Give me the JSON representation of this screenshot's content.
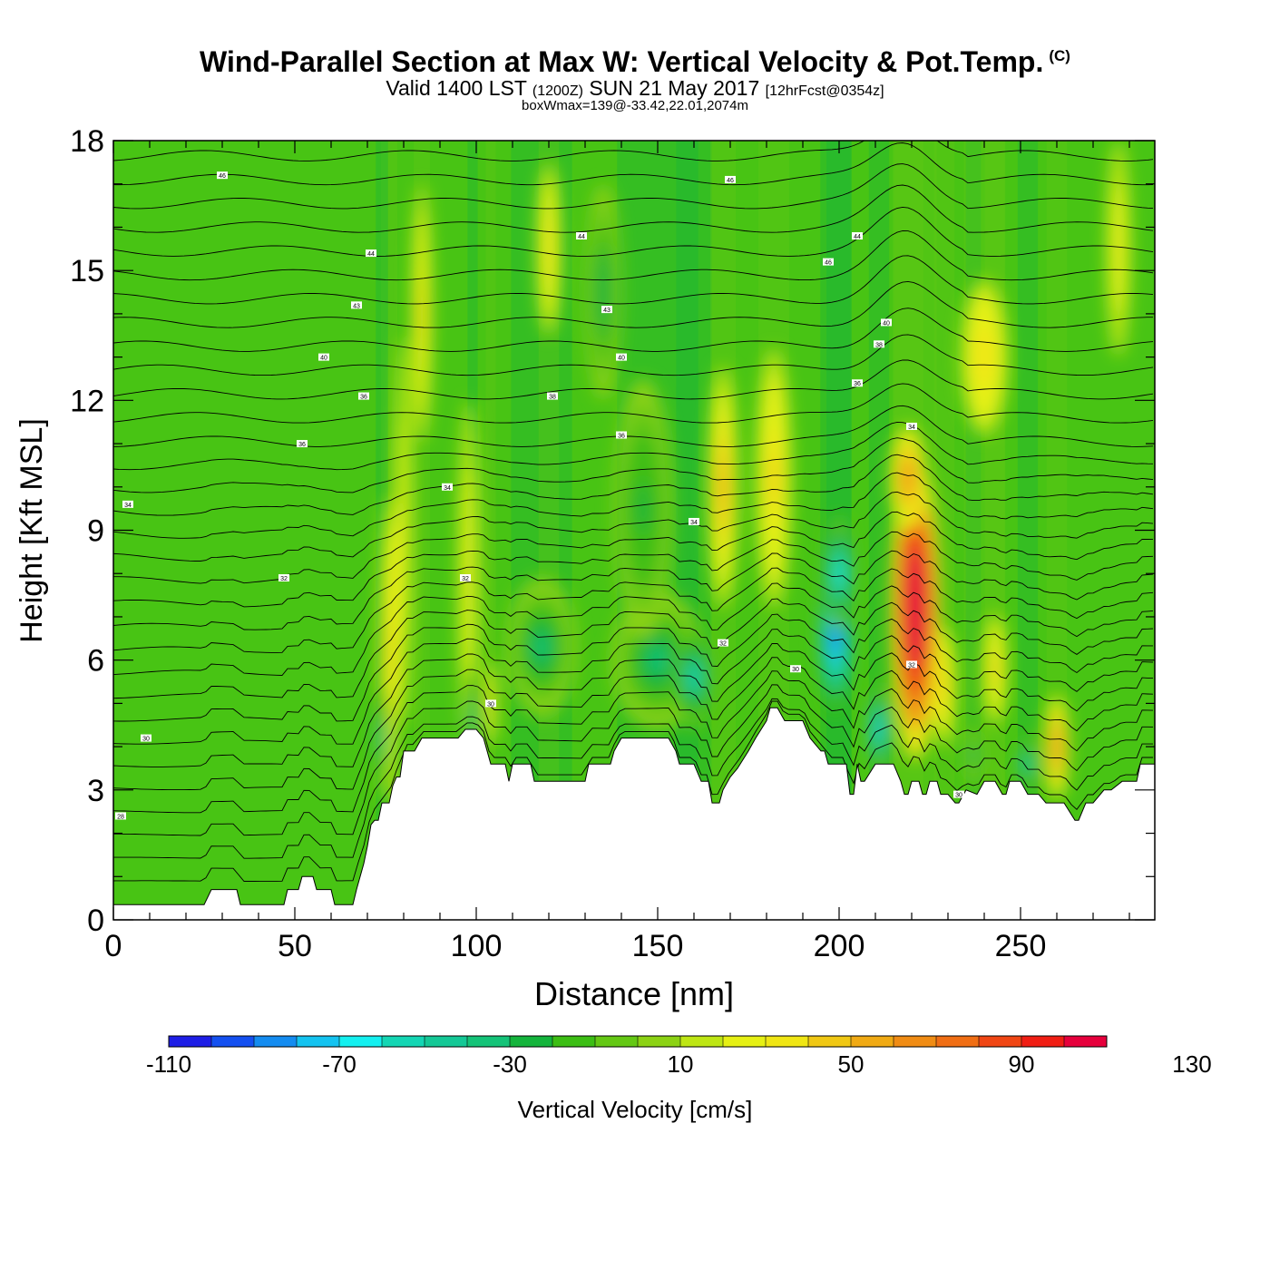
{
  "header": {
    "title": "Wind-Parallel Section at Max W: Vertical Velocity & Pot.Temp.",
    "title_tag": "(C)",
    "valid_prefix": "Valid 1400 LST",
    "valid_zulu": "(1200Z)",
    "valid_date": "SUN 21 May 2017",
    "forecast": "[12hrFcst@0354z]",
    "subtitle": "boxWmax=139@-33.42,22.01,2074m"
  },
  "colors": {
    "background_field": "#48c414",
    "terrain": "#ffffff",
    "contour": "#000000",
    "colorbar": [
      "#1e1ee6",
      "#1450f0",
      "#148cf0",
      "#14c3f0",
      "#14f0f0",
      "#14d6b4",
      "#14c896",
      "#14c378",
      "#14b43c",
      "#3cbe14",
      "#64c814",
      "#8cd214",
      "#bee614",
      "#e6f014",
      "#f0e614",
      "#f0c814",
      "#f0aa14",
      "#f08c14",
      "#f06e14",
      "#f04614",
      "#f01e14",
      "#e6003c"
    ]
  },
  "chart_data": {
    "type": "heatmap",
    "xlabel": "Distance [nm]",
    "ylabel": "Height [Kft MSL]",
    "xlim": [
      0,
      287
    ],
    "ylim": [
      0,
      18
    ],
    "x_ticks": [
      0,
      50,
      100,
      150,
      200,
      250
    ],
    "y_ticks": [
      0,
      3,
      6,
      9,
      12,
      15,
      18
    ],
    "colorbar": {
      "label": "Vertical Velocity [cm/s]",
      "range": [
        -110,
        150
      ],
      "step": 10,
      "tick_labels": [
        "-110",
        "-70",
        "-30",
        "10",
        "50",
        "90",
        "130"
      ]
    },
    "max_w": {
      "value": 139,
      "units": "cm/s",
      "lat": -33.42,
      "lon": 22.01,
      "height_m": 2074
    },
    "terrain": {
      "x": [
        0,
        20,
        25,
        27,
        28,
        34,
        35,
        40,
        45,
        47,
        48,
        51,
        52,
        55,
        56,
        60,
        61,
        66,
        67,
        69,
        70,
        71,
        72,
        73,
        74,
        75,
        76,
        77,
        78,
        79,
        80,
        83,
        85,
        88,
        90,
        92,
        95,
        97,
        100,
        102,
        104,
        105,
        106,
        108,
        109,
        110,
        111,
        115,
        116,
        117,
        120,
        125,
        130,
        131,
        133,
        135,
        137,
        138,
        140,
        150,
        153,
        155,
        156,
        158,
        160,
        162,
        164,
        165,
        166,
        167,
        168,
        170,
        172,
        175,
        177,
        180,
        181,
        183,
        185,
        188,
        190,
        192,
        195,
        196,
        197,
        198,
        200,
        201,
        202,
        203,
        204,
        205,
        206,
        207,
        210,
        212,
        215,
        217,
        218,
        219,
        220,
        222,
        223,
        224,
        225,
        227,
        228,
        230,
        232,
        233,
        235,
        238,
        240,
        242,
        243,
        245,
        246,
        247,
        248,
        250,
        252,
        255,
        257,
        260,
        262,
        265,
        266,
        268,
        270,
        273,
        275,
        278,
        279,
        282,
        283,
        285,
        287
      ],
      "y": [
        0.35,
        0.35,
        0.35,
        0.7,
        0.7,
        0.7,
        0.35,
        0.35,
        0.35,
        0.35,
        0.7,
        0.7,
        1.0,
        1.0,
        0.7,
        0.7,
        0.35,
        0.35,
        0.7,
        1.3,
        1.7,
        2.2,
        2.3,
        2.3,
        2.7,
        2.7,
        2.7,
        3.1,
        3.3,
        3.3,
        3.9,
        3.9,
        4.2,
        4.2,
        4.2,
        4.2,
        4.2,
        4.4,
        4.4,
        4.2,
        3.6,
        3.6,
        3.6,
        3.6,
        3.2,
        3.6,
        3.6,
        3.6,
        3.2,
        3.2,
        3.2,
        3.2,
        3.2,
        3.6,
        3.6,
        3.6,
        3.6,
        3.9,
        4.2,
        4.2,
        4.2,
        3.9,
        3.6,
        3.6,
        3.6,
        3.2,
        3.2,
        2.7,
        2.7,
        2.7,
        3.0,
        3.3,
        3.5,
        3.9,
        4.2,
        4.6,
        4.9,
        4.9,
        4.6,
        4.6,
        4.6,
        4.2,
        3.9,
        3.9,
        3.6,
        3.6,
        3.6,
        3.6,
        3.6,
        2.9,
        2.9,
        3.6,
        3.2,
        3.2,
        3.6,
        3.6,
        3.6,
        3.2,
        2.9,
        2.9,
        3.2,
        3.2,
        2.9,
        2.9,
        3.2,
        3.2,
        2.9,
        2.9,
        2.7,
        2.7,
        3.0,
        2.9,
        3.2,
        3.2,
        3.2,
        2.9,
        2.9,
        3.2,
        3.2,
        3.2,
        2.9,
        2.9,
        2.7,
        2.7,
        2.7,
        2.3,
        2.3,
        2.7,
        2.7,
        3.0,
        3.0,
        3.2,
        3.2,
        3.2,
        3.6,
        3.6,
        3.6
      ]
    },
    "velocity_features": [
      {
        "x": 76,
        "y": 6.2,
        "rx": 1.6,
        "ry": 3.6,
        "w": 45
      },
      {
        "x": 80,
        "y": 9.0,
        "rx": 1.4,
        "ry": 4.5,
        "w": 30
      },
      {
        "x": 85,
        "y": 14.0,
        "rx": 1.6,
        "ry": 3.0,
        "w": 40
      },
      {
        "x": 74,
        "y": 4.2,
        "rx": 1.2,
        "ry": 1.2,
        "w": -45
      },
      {
        "x": 98,
        "y": 8.0,
        "rx": 1.8,
        "ry": 4.0,
        "w": 30
      },
      {
        "x": 99,
        "y": 4.6,
        "rx": 1.0,
        "ry": 1.2,
        "w": -50
      },
      {
        "x": 104,
        "y": 5.0,
        "rx": 1.0,
        "ry": 1.0,
        "w": 45
      },
      {
        "x": 118,
        "y": 6.3,
        "rx": 6.0,
        "ry": 1.6,
        "w": -35
      },
      {
        "x": 120,
        "y": 15.5,
        "rx": 2.0,
        "ry": 2.0,
        "w": 35
      },
      {
        "x": 150,
        "y": 6.0,
        "rx": 8.0,
        "ry": 1.6,
        "w": -40
      },
      {
        "x": 160,
        "y": 5.6,
        "rx": 3.5,
        "ry": 1.2,
        "w": -55
      },
      {
        "x": 168,
        "y": 10.0,
        "rx": 2.5,
        "ry": 2.8,
        "w": 50
      },
      {
        "x": 146,
        "y": 9.5,
        "rx": 5.0,
        "ry": 3.0,
        "w": -25
      },
      {
        "x": 182,
        "y": 10.2,
        "rx": 3.0,
        "ry": 3.0,
        "w": 40
      },
      {
        "x": 199,
        "y": 6.6,
        "rx": 3.0,
        "ry": 1.8,
        "w": -95
      },
      {
        "x": 200,
        "y": 8.0,
        "rx": 2.5,
        "ry": 1.3,
        "w": -70
      },
      {
        "x": 211,
        "y": 4.4,
        "rx": 2.0,
        "ry": 1.0,
        "w": -75
      },
      {
        "x": 221,
        "y": 7.2,
        "rx": 4.2,
        "ry": 3.5,
        "w": 139
      },
      {
        "x": 219,
        "y": 10.2,
        "rx": 3.0,
        "ry": 1.2,
        "w": 60
      },
      {
        "x": 229,
        "y": 5.4,
        "rx": 2.0,
        "ry": 1.4,
        "w": 45
      },
      {
        "x": 243,
        "y": 5.8,
        "rx": 2.0,
        "ry": 1.3,
        "w": 40
      },
      {
        "x": 260,
        "y": 4.0,
        "rx": 2.0,
        "ry": 1.2,
        "w": 60
      },
      {
        "x": 252,
        "y": 3.6,
        "rx": 2.0,
        "ry": 0.6,
        "w": -55
      },
      {
        "x": 237,
        "y": 3.8,
        "rx": 1.5,
        "ry": 0.6,
        "w": -40
      },
      {
        "x": 240,
        "y": 13.0,
        "rx": 4.0,
        "ry": 1.8,
        "w": 35
      },
      {
        "x": 277,
        "y": 15.5,
        "rx": 2.0,
        "ry": 2.5,
        "w": 30
      },
      {
        "x": 135,
        "y": 14.5,
        "rx": 3.0,
        "ry": 2.5,
        "w": -30
      }
    ],
    "theta_contour_labels": [
      {
        "x": 30,
        "y": 17.2,
        "label": "46"
      },
      {
        "x": 71,
        "y": 15.4,
        "label": "44"
      },
      {
        "x": 67,
        "y": 14.2,
        "label": "43"
      },
      {
        "x": 58,
        "y": 13.0,
        "label": "40"
      },
      {
        "x": 69,
        "y": 12.1,
        "label": "36"
      },
      {
        "x": 52,
        "y": 11.0,
        "label": "36"
      },
      {
        "x": 4,
        "y": 9.6,
        "label": "34"
      },
      {
        "x": 47,
        "y": 7.9,
        "label": "32"
      },
      {
        "x": 92,
        "y": 10.0,
        "label": "34"
      },
      {
        "x": 97,
        "y": 7.9,
        "label": "32"
      },
      {
        "x": 104,
        "y": 5.0,
        "label": "30"
      },
      {
        "x": 129,
        "y": 15.8,
        "label": "44"
      },
      {
        "x": 136,
        "y": 14.1,
        "label": "43"
      },
      {
        "x": 121,
        "y": 12.1,
        "label": "38"
      },
      {
        "x": 140,
        "y": 13.0,
        "label": "40"
      },
      {
        "x": 140,
        "y": 11.2,
        "label": "36"
      },
      {
        "x": 170,
        "y": 17.1,
        "label": "46"
      },
      {
        "x": 160,
        "y": 9.2,
        "label": "34"
      },
      {
        "x": 168,
        "y": 6.4,
        "label": "32"
      },
      {
        "x": 188,
        "y": 5.8,
        "label": "30"
      },
      {
        "x": 197,
        "y": 15.2,
        "label": "46"
      },
      {
        "x": 205,
        "y": 15.8,
        "label": "44"
      },
      {
        "x": 213,
        "y": 13.8,
        "label": "40"
      },
      {
        "x": 211,
        "y": 13.3,
        "label": "38"
      },
      {
        "x": 205,
        "y": 12.4,
        "label": "36"
      },
      {
        "x": 220,
        "y": 11.4,
        "label": "34"
      },
      {
        "x": 220,
        "y": 5.9,
        "label": "32"
      },
      {
        "x": 233,
        "y": 2.9,
        "label": "30"
      },
      {
        "x": 9,
        "y": 4.2,
        "label": "30"
      },
      {
        "x": 2,
        "y": 2.4,
        "label": "28"
      }
    ]
  }
}
